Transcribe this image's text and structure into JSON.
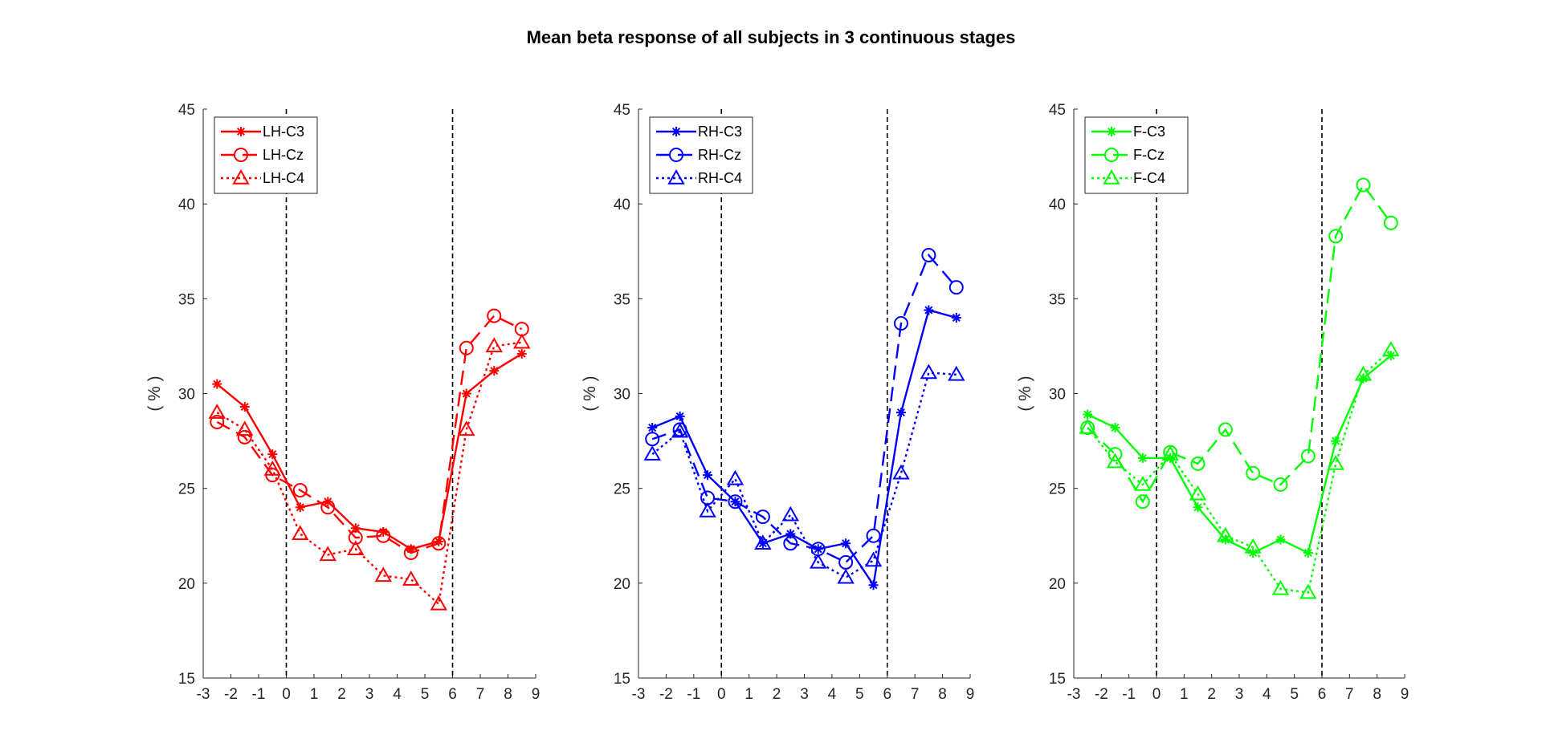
{
  "title": "Mean beta response of all subjects in 3 continuous stages",
  "chart_data": [
    {
      "type": "line",
      "title": "",
      "xlabel": "",
      "ylabel": "( % )",
      "xlim": [
        -3,
        9
      ],
      "ylim": [
        15,
        45
      ],
      "xticks": [
        -3,
        -2,
        -1,
        0,
        1,
        2,
        3,
        4,
        5,
        6,
        7,
        8,
        9
      ],
      "yticks": [
        15,
        20,
        25,
        30,
        35,
        40,
        45
      ],
      "vlines": [
        0,
        6
      ],
      "color": "#ff0000",
      "legend_position": "top-left",
      "series": [
        {
          "name": "LH-C3",
          "style": "solid",
          "marker": "asterisk",
          "x": [
            -2.5,
            -1.5,
            -0.5,
            0.5,
            1.5,
            2.5,
            3.5,
            4.5,
            5.5,
            6.5,
            7.5,
            8.5
          ],
          "y": [
            30.5,
            29.3,
            26.8,
            24.0,
            24.3,
            22.9,
            22.7,
            21.8,
            22.2,
            30.0,
            31.2,
            32.1
          ]
        },
        {
          "name": "LH-Cz",
          "style": "dashed",
          "marker": "circle",
          "x": [
            -2.5,
            -1.5,
            -0.5,
            0.5,
            1.5,
            2.5,
            3.5,
            4.5,
            5.5,
            6.5,
            7.5,
            8.5
          ],
          "y": [
            28.5,
            27.7,
            25.7,
            24.9,
            24.0,
            22.4,
            22.5,
            21.6,
            22.1,
            32.4,
            34.1,
            33.4
          ]
        },
        {
          "name": "LH-C4",
          "style": "dotted",
          "marker": "triangle",
          "x": [
            -2.5,
            -1.5,
            -0.5,
            0.5,
            1.5,
            2.5,
            3.5,
            4.5,
            5.5,
            6.5,
            7.5,
            8.5
          ],
          "y": [
            29.0,
            28.1,
            26.0,
            22.6,
            21.5,
            21.8,
            20.4,
            20.2,
            18.9,
            28.1,
            32.5,
            32.7
          ]
        }
      ]
    },
    {
      "type": "line",
      "title": "",
      "xlabel": "",
      "ylabel": "( % )",
      "xlim": [
        -3,
        9
      ],
      "ylim": [
        15,
        45
      ],
      "xticks": [
        -3,
        -2,
        -1,
        0,
        1,
        2,
        3,
        4,
        5,
        6,
        7,
        8,
        9
      ],
      "yticks": [
        15,
        20,
        25,
        30,
        35,
        40,
        45
      ],
      "vlines": [
        0,
        6
      ],
      "color": "#0000ff",
      "legend_position": "top-left",
      "series": [
        {
          "name": "RH-C3",
          "style": "solid",
          "marker": "asterisk",
          "x": [
            -2.5,
            -1.5,
            -0.5,
            0.5,
            1.5,
            2.5,
            3.5,
            4.5,
            5.5,
            6.5,
            7.5,
            8.5
          ],
          "y": [
            28.2,
            28.8,
            25.7,
            24.3,
            22.1,
            22.6,
            21.8,
            22.1,
            19.9,
            29.0,
            34.4,
            34.0
          ]
        },
        {
          "name": "RH-Cz",
          "style": "dashed",
          "marker": "circle",
          "x": [
            -2.5,
            -1.5,
            -0.5,
            0.5,
            1.5,
            2.5,
            3.5,
            4.5,
            5.5,
            6.5,
            7.5,
            8.5
          ],
          "y": [
            27.6,
            28.1,
            24.5,
            24.3,
            23.5,
            22.1,
            21.8,
            21.1,
            22.5,
            33.7,
            37.3,
            35.6
          ]
        },
        {
          "name": "RH-C4",
          "style": "dotted",
          "marker": "triangle",
          "x": [
            -2.5,
            -1.5,
            -0.5,
            0.5,
            1.5,
            2.5,
            3.5,
            4.5,
            5.5,
            6.5,
            7.5,
            8.5
          ],
          "y": [
            26.8,
            28.0,
            23.8,
            25.5,
            22.1,
            23.6,
            21.1,
            20.3,
            21.2,
            25.8,
            31.1,
            31.0
          ]
        }
      ]
    },
    {
      "type": "line",
      "title": "",
      "xlabel": "",
      "ylabel": "( % )",
      "xlim": [
        -3,
        9
      ],
      "ylim": [
        15,
        45
      ],
      "xticks": [
        -3,
        -2,
        -1,
        0,
        1,
        2,
        3,
        4,
        5,
        6,
        7,
        8,
        9
      ],
      "yticks": [
        15,
        20,
        25,
        30,
        35,
        40,
        45
      ],
      "vlines": [
        0,
        6
      ],
      "color": "#00ff00",
      "legend_position": "top-left",
      "series": [
        {
          "name": "F-C3",
          "style": "solid",
          "marker": "asterisk",
          "x": [
            -2.5,
            -1.5,
            -0.5,
            0.5,
            1.5,
            2.5,
            3.5,
            4.5,
            5.5,
            6.5,
            7.5,
            8.5
          ],
          "y": [
            28.9,
            28.2,
            26.6,
            26.6,
            24.0,
            22.3,
            21.6,
            22.3,
            21.6,
            27.5,
            30.8,
            32.0
          ]
        },
        {
          "name": "F-Cz",
          "style": "dashed",
          "marker": "circle",
          "x": [
            -2.5,
            -1.5,
            -0.5,
            0.5,
            1.5,
            2.5,
            3.5,
            4.5,
            5.5,
            6.5,
            7.5,
            8.5
          ],
          "y": [
            28.2,
            26.8,
            24.3,
            26.9,
            26.3,
            28.1,
            25.8,
            25.2,
            26.7,
            38.3,
            41.0,
            39.0
          ]
        },
        {
          "name": "F-C4",
          "style": "dotted",
          "marker": "triangle",
          "x": [
            -2.5,
            -1.5,
            -0.5,
            0.5,
            1.5,
            2.5,
            3.5,
            4.5,
            5.5,
            6.5,
            7.5,
            8.5
          ],
          "y": [
            28.2,
            26.4,
            25.2,
            26.8,
            24.7,
            22.5,
            21.9,
            19.7,
            19.5,
            26.3,
            31.0,
            32.3
          ]
        }
      ]
    }
  ]
}
